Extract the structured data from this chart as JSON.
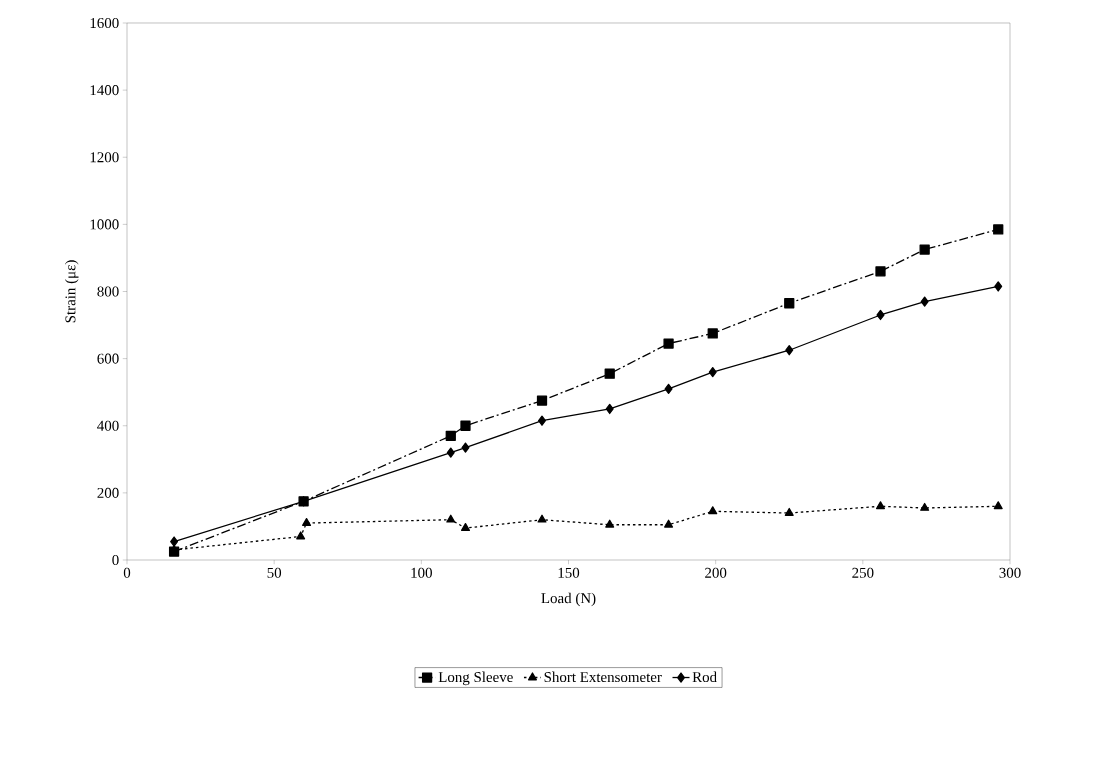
{
  "chart_data": {
    "type": "line",
    "xlabel": "Load (N)",
    "ylabel": "Strain (με)",
    "xlim": [
      0,
      300
    ],
    "xticks": [
      0,
      50,
      100,
      150,
      200,
      250,
      300
    ],
    "ylim": [
      0,
      1600
    ],
    "yticks": [
      0,
      200,
      400,
      600,
      800,
      1000,
      1200,
      1400,
      1600
    ],
    "grid": false,
    "legend": "bottom",
    "series": [
      {
        "name": "Long Sleeve",
        "color": "#000000",
        "marker": "square",
        "line_style": "dashed",
        "x": [
          16,
          60,
          110,
          115,
          141,
          164,
          184,
          199,
          225,
          256,
          271,
          296
        ],
        "values": [
          25,
          175,
          370,
          400,
          475,
          555,
          645,
          675,
          765,
          860,
          925,
          985
        ]
      },
      {
        "name": "Short Extensometer",
        "color": "#000000",
        "marker": "triangle",
        "line_style": "dotted",
        "x": [
          16,
          59,
          61,
          110,
          115,
          141,
          164,
          184,
          199,
          225,
          256,
          271,
          296
        ],
        "values": [
          30,
          70,
          110,
          120,
          95,
          120,
          105,
          105,
          145,
          140,
          160,
          155,
          160
        ]
      },
      {
        "name": "Rod",
        "color": "#000000",
        "marker": "diamond",
        "line_style": "solid",
        "x": [
          16,
          60,
          110,
          115,
          141,
          164,
          184,
          199,
          225,
          256,
          271,
          296
        ],
        "values": [
          55,
          175,
          320,
          335,
          415,
          450,
          510,
          560,
          625,
          730,
          770,
          815
        ]
      }
    ]
  }
}
